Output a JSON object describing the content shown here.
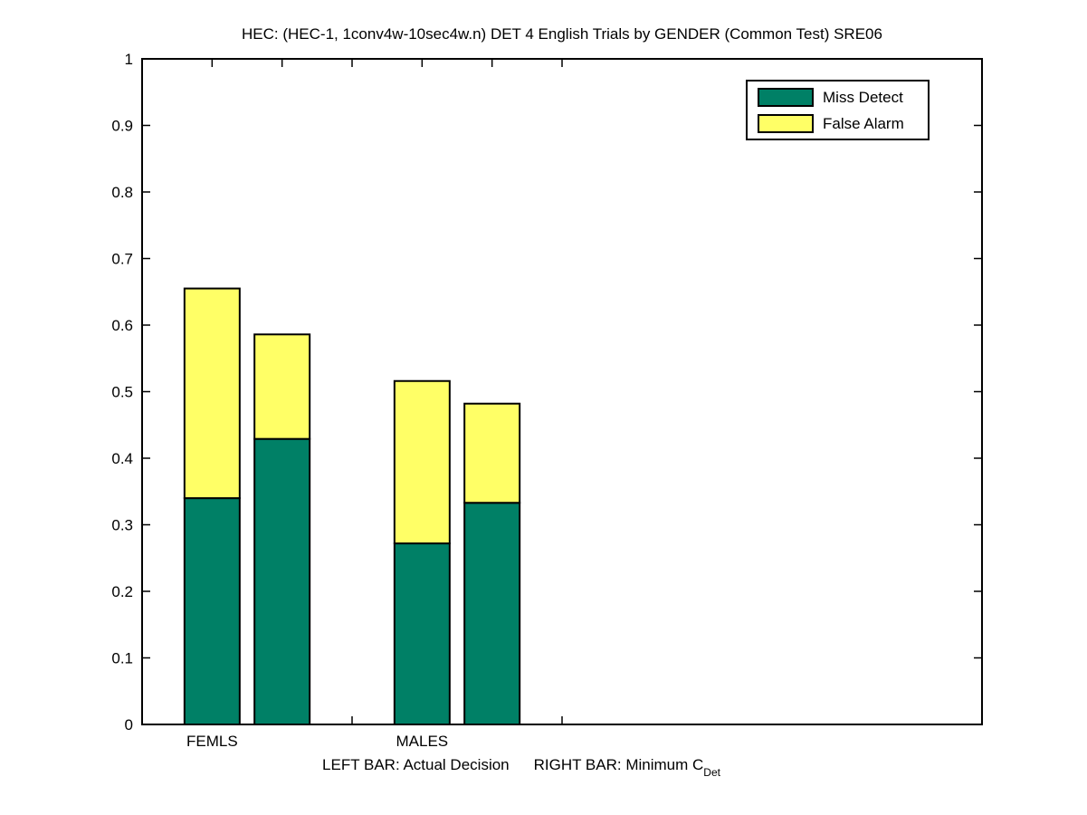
{
  "title": "HEC: (HEC-1, 1conv4w-10sec4w.n) DET 4 English Trials by GENDER (Common Test) SRE06",
  "colors": {
    "miss_detect": "#008066",
    "false_alarm": "#FFFF66",
    "axis": "#000000",
    "background": "#FFFFFF"
  },
  "chart_data": {
    "type": "bar",
    "stacked": true,
    "title": "HEC: (HEC-1, 1conv4w-10sec4w.n) DET 4 English Trials by GENDER (Common Test) SRE06",
    "xlabel": "",
    "ylabel": "",
    "ylim": [
      0,
      1
    ],
    "ytick_labels": [
      "0",
      "0.1",
      "0.2",
      "0.3",
      "0.4",
      "0.5",
      "0.6",
      "0.7",
      "0.8",
      "0.9",
      "1"
    ],
    "grid": false,
    "legend_position": "top-right",
    "categories": [
      "FEMLS",
      "MALES"
    ],
    "series": [
      {
        "name": "Miss Detect",
        "color": "#008066",
        "values": [
          0.34,
          0.429,
          0.272,
          0.333
        ]
      },
      {
        "name": "False Alarm",
        "color": "#FFFF66",
        "values": [
          0.315,
          0.157,
          0.244,
          0.149
        ]
      }
    ],
    "bars": [
      {
        "group": "FEMLS",
        "bar": "Actual Decision",
        "miss_detect": 0.34,
        "false_alarm": 0.315,
        "total": 0.655
      },
      {
        "group": "FEMLS",
        "bar": "Minimum CDet",
        "miss_detect": 0.429,
        "false_alarm": 0.157,
        "total": 0.586
      },
      {
        "group": "MALES",
        "bar": "Actual Decision",
        "miss_detect": 0.272,
        "false_alarm": 0.244,
        "total": 0.516
      },
      {
        "group": "MALES",
        "bar": "Minimum CDet",
        "miss_detect": 0.333,
        "false_alarm": 0.149,
        "total": 0.482
      }
    ]
  },
  "legend": {
    "items": [
      {
        "label": "Miss Detect",
        "color": "#008066"
      },
      {
        "label": "False Alarm",
        "color": "#FFFF66"
      }
    ]
  },
  "footnote": {
    "left_text": "LEFT BAR: Actual Decision",
    "right_text": "RIGHT BAR: Minimum C",
    "right_sub": "Det"
  }
}
